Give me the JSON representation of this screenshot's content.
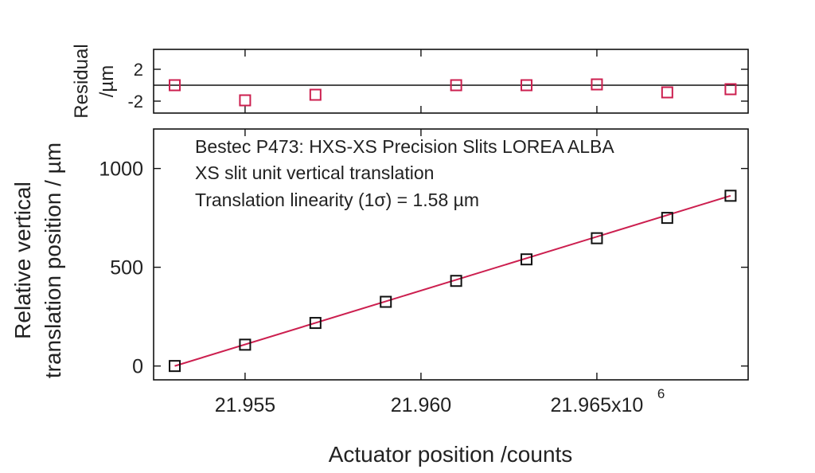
{
  "chart_data": [
    {
      "type": "scatter",
      "panel": "residual",
      "ylabel": "Residual\n/µm",
      "yticks": [
        "2",
        "-2"
      ],
      "ytick_values": [
        2,
        -2
      ],
      "ylim": [
        -3.5,
        4.5
      ],
      "xlim": [
        21.9524,
        21.9693
      ],
      "zero_line": true,
      "series": [
        {
          "marker": "open-square",
          "color": "#cc1f4f",
          "x": [
            21.953,
            21.955,
            21.957,
            21.961,
            21.963,
            21.965,
            21.967,
            21.9688
          ],
          "y": [
            0.0,
            -1.9,
            -1.2,
            0.0,
            0.0,
            0.1,
            -0.9,
            -0.5
          ]
        }
      ]
    },
    {
      "type": "scatter",
      "panel": "main",
      "annotations": [
        "Bestec P473: HXS-XS Precision Slits LOREA ALBA",
        "XS slit unit vertical translation",
        "Translation linearity (1σ) = 1.58 µm"
      ],
      "xlabel": "Actuator position /counts",
      "ylabel_line1": "Relative vertical",
      "ylabel_line2": "translation position / µm",
      "xtick_values": [
        21.955,
        21.96,
        21.965
      ],
      "xticks": [
        "21.955",
        "21.960",
        "21.965x10"
      ],
      "x_exponent": "6",
      "yticks": [
        "0",
        "500",
        "1000"
      ],
      "ytick_values": [
        0,
        500,
        1000
      ],
      "xlim": [
        21.9524,
        21.9693
      ],
      "ylim": [
        -70,
        1200
      ],
      "grid": false,
      "series": [
        {
          "marker": "open-square",
          "color": "#111111",
          "x": [
            21.953,
            21.955,
            21.957,
            21.959,
            21.961,
            21.963,
            21.965,
            21.967,
            21.9688
          ],
          "y": [
            0,
            108,
            218,
            325,
            431,
            540,
            647,
            750,
            862
          ]
        }
      ],
      "fit_line": {
        "color": "#cc1f4f",
        "x": [
          21.953,
          21.9688
        ],
        "y": [
          0,
          862
        ]
      }
    }
  ]
}
